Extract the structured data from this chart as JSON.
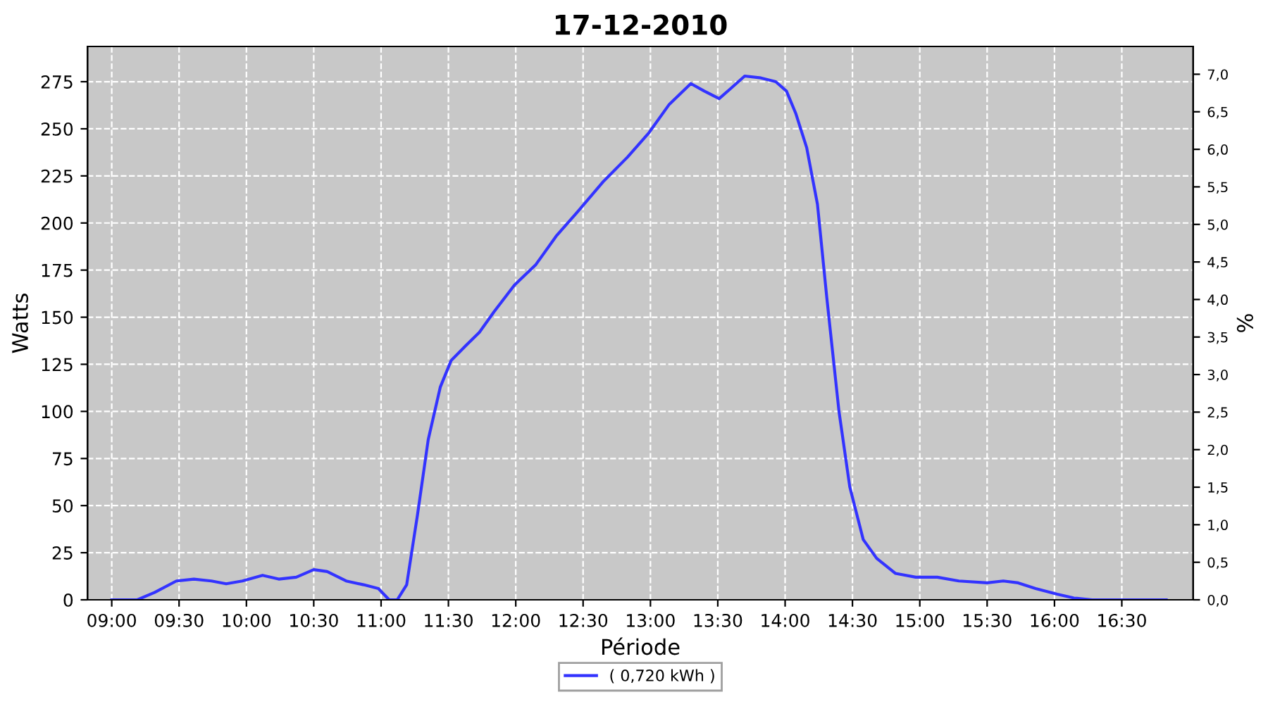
{
  "chart_data": {
    "type": "line",
    "title": "17-12-2010",
    "xlabel": "Période",
    "ylabel": "Watts",
    "y2label": "%",
    "xlim": [
      8.82,
      17.03
    ],
    "ylim": [
      0,
      293.7
    ],
    "y2lim": [
      0,
      7.37
    ],
    "xticks": [
      {
        "value": 9,
        "label": "09:00"
      },
      {
        "value": 9.5,
        "label": "09:30"
      },
      {
        "value": 10,
        "label": "10:00"
      },
      {
        "value": 10.5,
        "label": "10:30"
      },
      {
        "value": 11,
        "label": "11:00"
      },
      {
        "value": 11.5,
        "label": "11:30"
      },
      {
        "value": 12,
        "label": "12:00"
      },
      {
        "value": 12.5,
        "label": "12:30"
      },
      {
        "value": 13,
        "label": "13:00"
      },
      {
        "value": 13.5,
        "label": "13:30"
      },
      {
        "value": 14,
        "label": "14:00"
      },
      {
        "value": 14.5,
        "label": "14:30"
      },
      {
        "value": 15,
        "label": "15:00"
      },
      {
        "value": 15.5,
        "label": "15:30"
      },
      {
        "value": 16,
        "label": "16:00"
      },
      {
        "value": 16.5,
        "label": "16:30"
      }
    ],
    "yticks": [
      0,
      25,
      50,
      75,
      100,
      125,
      150,
      175,
      200,
      225,
      250,
      275
    ],
    "y2ticks": [
      {
        "value": 0,
        "label": "0,0"
      },
      {
        "value": 0.5,
        "label": "0,5"
      },
      {
        "value": 1,
        "label": "1,0"
      },
      {
        "value": 1.5,
        "label": "1,5"
      },
      {
        "value": 2,
        "label": "2,0"
      },
      {
        "value": 2.5,
        "label": "2,5"
      },
      {
        "value": 3,
        "label": "3,0"
      },
      {
        "value": 3.5,
        "label": "3,5"
      },
      {
        "value": 4,
        "label": "4,0"
      },
      {
        "value": 4.5,
        "label": "4,5"
      },
      {
        "value": 5,
        "label": "5,0"
      },
      {
        "value": 5.5,
        "label": "5,5"
      },
      {
        "value": 6,
        "label": "6,0"
      },
      {
        "value": 6.5,
        "label": "6,5"
      },
      {
        "value": 7,
        "label": "7,0"
      }
    ],
    "grid": true,
    "legend": "bottom",
    "marker": "none",
    "line_style": "solid",
    "series": [
      {
        "name": "( 0,720 kWh )",
        "color": "#3333ff",
        "x": [
          9.0,
          9.19,
          9.32,
          9.48,
          9.61,
          9.74,
          9.85,
          9.97,
          10.12,
          10.24,
          10.37,
          10.5,
          10.6,
          10.74,
          10.87,
          10.98,
          11.06,
          11.12,
          11.19,
          11.27,
          11.35,
          11.44,
          11.52,
          11.63,
          11.73,
          11.84,
          11.99,
          12.15,
          12.3,
          12.46,
          12.65,
          12.83,
          12.99,
          13.14,
          13.3,
          13.4,
          13.51,
          13.59,
          13.7,
          13.82,
          13.93,
          14.01,
          14.08,
          14.16,
          14.24,
          14.31,
          14.4,
          14.48,
          14.58,
          14.68,
          14.82,
          14.97,
          15.13,
          15.29,
          15.5,
          15.62,
          15.73,
          15.86,
          16.02,
          16.14,
          16.28,
          16.83
        ],
        "values": [
          0,
          0,
          4,
          10,
          11,
          10,
          8.5,
          10,
          13,
          11,
          12,
          16,
          15,
          10,
          8,
          6,
          0,
          0,
          8,
          45,
          85,
          113,
          127,
          135,
          142,
          153,
          167,
          178,
          193,
          206,
          222,
          235,
          248,
          263,
          274,
          270,
          266,
          271,
          278,
          277,
          275,
          270,
          258,
          240,
          210,
          160,
          100,
          60,
          32,
          22,
          14,
          12,
          12,
          10,
          9,
          10,
          9,
          6,
          3,
          1,
          0,
          0
        ]
      }
    ]
  }
}
